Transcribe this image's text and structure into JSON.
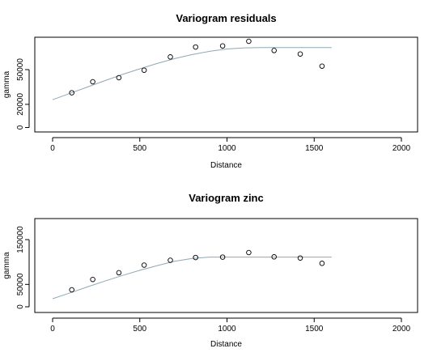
{
  "chart_data": [
    {
      "type": "scatter",
      "title": "Variogram residuals",
      "xlabel": "Distance",
      "ylabel": "gamma",
      "xlim": [
        0,
        2000
      ],
      "ylim": [
        0,
        80000
      ],
      "xticks": [
        0,
        500,
        1000,
        1500,
        2000
      ],
      "yticks": [
        0,
        20000,
        50000
      ],
      "xtick_labels": [
        "0",
        "500",
        "1000",
        "1500",
        "2000"
      ],
      "ytick_labels": [
        "0",
        "20000",
        "50000"
      ],
      "grid": false,
      "series": [
        {
          "kind": "points",
          "marker": "open-circle",
          "x": [
            110,
            230,
            380,
            525,
            675,
            820,
            975,
            1125,
            1270,
            1420,
            1545
          ],
          "y": [
            30000,
            39500,
            43000,
            49500,
            61000,
            69500,
            70500,
            74500,
            66500,
            63500,
            53000
          ]
        },
        {
          "kind": "fitted-line",
          "color": "#8fa8b5",
          "x": [
            0,
            100,
            200,
            300,
            400,
            500,
            600,
            700,
            800,
            900,
            1000,
            1100,
            1200,
            1300,
            1400,
            1500,
            1600
          ],
          "y": [
            24000,
            29500,
            35000,
            40500,
            45800,
            50700,
            55300,
            59500,
            63000,
            65800,
            67800,
            68800,
            69000,
            69000,
            69000,
            69000,
            69000
          ]
        }
      ]
    },
    {
      "type": "scatter",
      "title": "Variogram zinc",
      "xlabel": "Distance",
      "ylabel": "gamma",
      "xlim": [
        0,
        2000
      ],
      "ylim": [
        0,
        150000
      ],
      "xticks": [
        0,
        500,
        1000,
        1500,
        2000
      ],
      "yticks": [
        0,
        50000,
        150000
      ],
      "xtick_labels": [
        "0",
        "500",
        "1000",
        "1500",
        "2000"
      ],
      "ytick_labels": [
        "0",
        "50000",
        "150000"
      ],
      "grid": false,
      "series": [
        {
          "kind": "points",
          "marker": "open-circle",
          "x": [
            110,
            230,
            380,
            525,
            675,
            820,
            975,
            1125,
            1270,
            1420,
            1545
          ],
          "y": [
            38000,
            61000,
            76000,
            93000,
            104000,
            110000,
            111000,
            121000,
            111500,
            109000,
            97000
          ]
        },
        {
          "kind": "fitted-line",
          "color": "#8fa8b5",
          "x": [
            0,
            100,
            200,
            300,
            400,
            500,
            600,
            700,
            800,
            900,
            1000,
            1100,
            1200,
            1300,
            1400,
            1500,
            1600
          ],
          "y": [
            18000,
            31000,
            44500,
            57500,
            70000,
            81500,
            92000,
            101500,
            108000,
            111000,
            111000,
            111000,
            111000,
            111000,
            111000,
            111000,
            111000
          ]
        }
      ]
    }
  ]
}
